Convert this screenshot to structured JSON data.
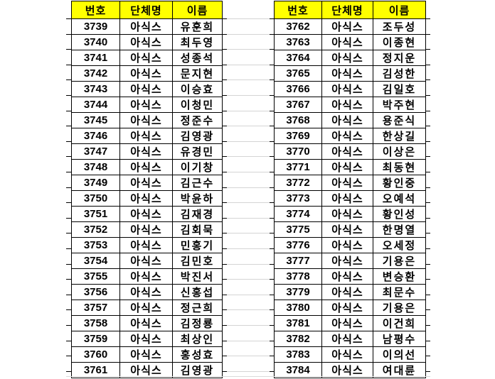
{
  "style": {
    "background": "#ffffff",
    "header_bg": "#ffff00",
    "border_color": "#000000",
    "gridline_color": "#d4d4d4",
    "text_color": "#000000"
  },
  "columns": [
    "번호",
    "단체명",
    "이름"
  ],
  "tables": [
    {
      "side": "left",
      "rows": [
        [
          "3739",
          "아식스",
          "유훈희"
        ],
        [
          "3740",
          "아식스",
          "최두영"
        ],
        [
          "3741",
          "아식스",
          "성종석"
        ],
        [
          "3742",
          "아식스",
          "문지현"
        ],
        [
          "3743",
          "아식스",
          "이승효"
        ],
        [
          "3744",
          "아식스",
          "이청민"
        ],
        [
          "3745",
          "아식스",
          "정준수"
        ],
        [
          "3746",
          "아식스",
          "김영광"
        ],
        [
          "3747",
          "아식스",
          "유경민"
        ],
        [
          "3748",
          "아식스",
          "이기창"
        ],
        [
          "3749",
          "아식스",
          "김근수"
        ],
        [
          "3750",
          "아식스",
          "박윤하"
        ],
        [
          "3751",
          "아식스",
          "김재경"
        ],
        [
          "3752",
          "아식스",
          "김회묵"
        ],
        [
          "3753",
          "아식스",
          "민홍기"
        ],
        [
          "3754",
          "아식스",
          "김민호"
        ],
        [
          "3755",
          "아식스",
          "박진서"
        ],
        [
          "3756",
          "아식스",
          "신홍섭"
        ],
        [
          "3757",
          "아식스",
          "정근희"
        ],
        [
          "3758",
          "아식스",
          "김정룡"
        ],
        [
          "3759",
          "아식스",
          "최상인"
        ],
        [
          "3760",
          "아식스",
          "홍성효"
        ],
        [
          "3761",
          "아식스",
          "김영광"
        ]
      ]
    },
    {
      "side": "right",
      "rows": [
        [
          "3762",
          "아식스",
          "조두성"
        ],
        [
          "3763",
          "아식스",
          "이종현"
        ],
        [
          "3764",
          "아식스",
          "정지운"
        ],
        [
          "3765",
          "아식스",
          "김성한"
        ],
        [
          "3766",
          "아식스",
          "김일호"
        ],
        [
          "3767",
          "아식스",
          "박주현"
        ],
        [
          "3768",
          "아식스",
          "용준식"
        ],
        [
          "3769",
          "아식스",
          "한상길"
        ],
        [
          "3770",
          "아식스",
          "이상은"
        ],
        [
          "3771",
          "아식스",
          "최동현"
        ],
        [
          "3772",
          "아식스",
          "황인중"
        ],
        [
          "3773",
          "아식스",
          "오예석"
        ],
        [
          "3774",
          "아식스",
          "황인성"
        ],
        [
          "3775",
          "아식스",
          "한명열"
        ],
        [
          "3776",
          "아식스",
          "오세정"
        ],
        [
          "3777",
          "아식스",
          "기용은"
        ],
        [
          "3778",
          "아식스",
          "변승환"
        ],
        [
          "3779",
          "아식스",
          "최문수"
        ],
        [
          "3780",
          "아식스",
          "기용은"
        ],
        [
          "3781",
          "아식스",
          "이건희"
        ],
        [
          "3782",
          "아식스",
          "남평수"
        ],
        [
          "3783",
          "아식스",
          "이의선"
        ],
        [
          "3784",
          "아식스",
          "여대륜"
        ]
      ]
    }
  ]
}
